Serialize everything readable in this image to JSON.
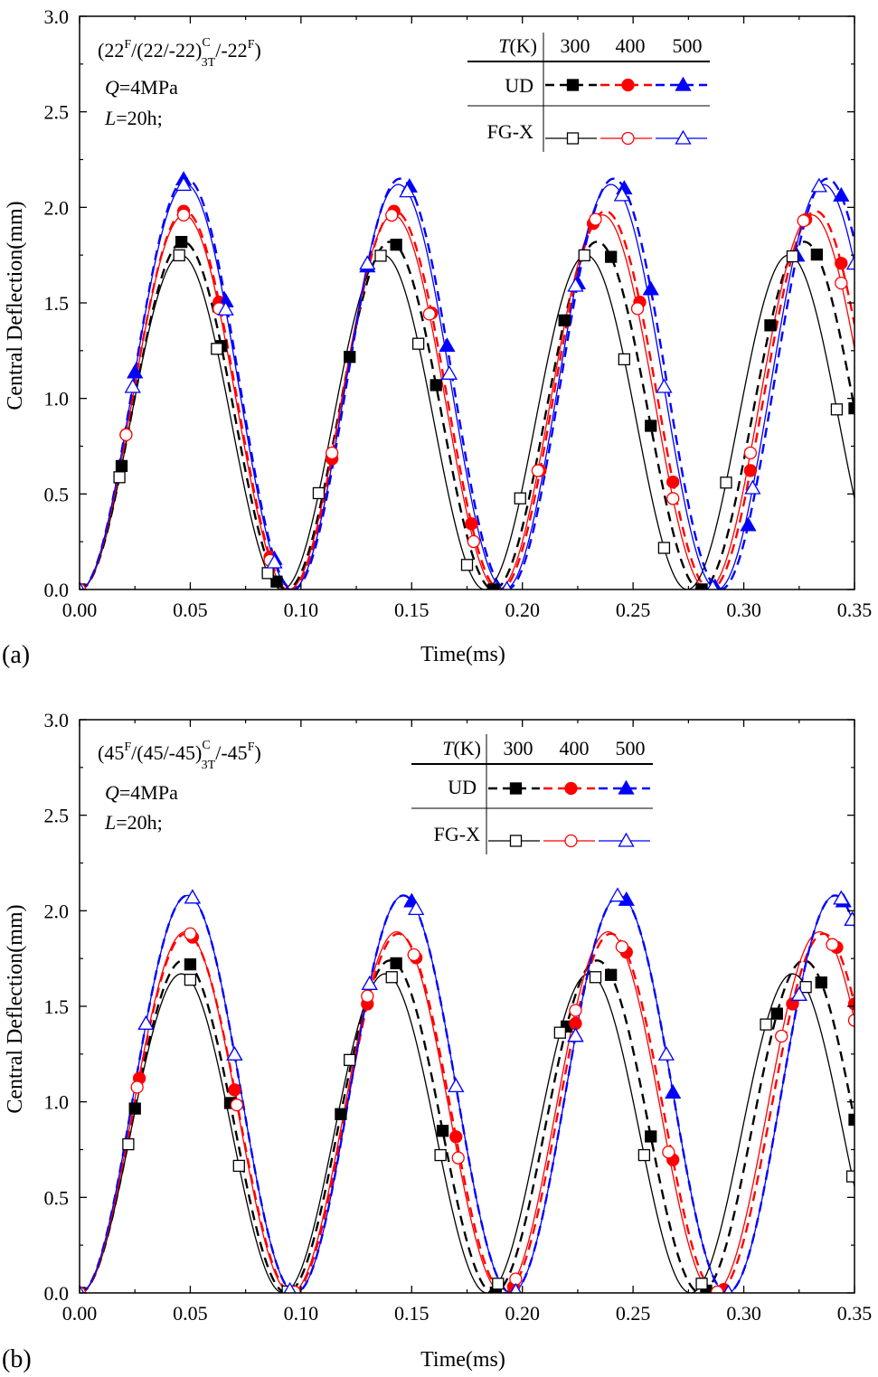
{
  "colors": {
    "t300": "#000000",
    "t400": "#ff0000",
    "t500": "#0000ff"
  },
  "chart_data": [
    {
      "type": "line",
      "panel_label": "(a)",
      "xlabel": "Time(ms)",
      "ylabel": "Central Deflection(mm)",
      "xlim": [
        0,
        0.35
      ],
      "ylim": [
        0,
        3.0
      ],
      "xticks": [
        "0.00",
        "0.05",
        "0.10",
        "0.15",
        "0.20",
        "0.25",
        "0.30",
        "0.35"
      ],
      "yticks": [
        "0.0",
        "0.5",
        "1.0",
        "1.5",
        "2.0",
        "2.5",
        "3.0"
      ],
      "annotation": {
        "layup_start": "(22",
        "layup_sup1": "F",
        "layup_mid": "/(22/-22)",
        "layup_sup2": "C",
        "layup_sub2": "3T",
        "layup_end": "/-22",
        "layup_sup3": "F",
        "layup_close": ")",
        "load_var": "Q",
        "load_val": "=4MPa",
        "length_var": "L",
        "length_val": "=20h;"
      },
      "legend": {
        "header_var": "T",
        "header_unit": "(K)",
        "temps": [
          "300",
          "400",
          "500"
        ],
        "row_ud": "UD",
        "row_fg": "FG-X"
      },
      "series": [
        {
          "name": "UD 300K",
          "temperature": 300,
          "material": "UD",
          "style": "dashed",
          "marker": "filled-square",
          "color": "#000000",
          "amplitude": 1.82,
          "period": 0.0935,
          "marker_x": [
            0.019,
            0.046,
            0.064,
            0.089,
            0.122,
            0.143,
            0.161,
            0.187,
            0.219,
            0.24,
            0.258,
            0.281,
            0.312,
            0.333,
            0.35
          ]
        },
        {
          "name": "UD 400K",
          "temperature": 400,
          "material": "UD",
          "style": "dashed",
          "marker": "filled-circle",
          "color": "#ff0000",
          "amplitude": 1.98,
          "period": 0.095,
          "marker_x": [
            0.021,
            0.047,
            0.063,
            0.086,
            0.114,
            0.142,
            0.159,
            0.177,
            0.208,
            0.232,
            0.253,
            0.268,
            0.303,
            0.328,
            0.344
          ]
        },
        {
          "name": "UD 500K",
          "temperature": 500,
          "material": "UD",
          "style": "dashed",
          "marker": "filled-triangle",
          "color": "#0000ff",
          "amplitude": 2.15,
          "period": 0.0965,
          "marker_x": [
            0.025,
            0.047,
            0.066,
            0.088,
            0.13,
            0.149,
            0.166,
            0.193,
            0.225,
            0.246,
            0.258,
            0.287,
            0.302,
            0.324,
            0.344
          ]
        },
        {
          "name": "FG-X 300K",
          "temperature": 300,
          "material": "FG-X",
          "style": "solid",
          "marker": "open-square",
          "color": "#000000",
          "amplitude": 1.75,
          "period": 0.0915,
          "marker_x": [
            0.018,
            0.045,
            0.062,
            0.085,
            0.108,
            0.136,
            0.153,
            0.175,
            0.199,
            0.228,
            0.246,
            0.264,
            0.292,
            0.322,
            0.342
          ]
        },
        {
          "name": "FG-X 400K",
          "temperature": 400,
          "material": "FG-X",
          "style": "solid",
          "marker": "open-circle",
          "color": "#ff0000",
          "amplitude": 1.96,
          "period": 0.0945,
          "marker_x": [
            0.021,
            0.047,
            0.063,
            0.086,
            0.114,
            0.141,
            0.158,
            0.178,
            0.207,
            0.233,
            0.252,
            0.268,
            0.303,
            0.327,
            0.344
          ]
        },
        {
          "name": "FG-X 500K",
          "temperature": 500,
          "material": "FG-X",
          "style": "solid",
          "marker": "open-triangle",
          "color": "#0000ff",
          "amplitude": 2.12,
          "period": 0.096,
          "marker_x": [
            0.024,
            0.047,
            0.066,
            0.088,
            0.13,
            0.148,
            0.167,
            0.193,
            0.224,
            0.245,
            0.264,
            0.286,
            0.304,
            0.334,
            0.35
          ]
        }
      ]
    },
    {
      "type": "line",
      "panel_label": "(b)",
      "xlabel": "Time(ms)",
      "ylabel": "Central Deflection(mm)",
      "xlim": [
        0,
        0.35
      ],
      "ylim": [
        0,
        3.0
      ],
      "xticks": [
        "0.00",
        "0.05",
        "0.10",
        "0.15",
        "0.20",
        "0.25",
        "0.30",
        "0.35"
      ],
      "yticks": [
        "0.0",
        "0.5",
        "1.0",
        "1.5",
        "2.0",
        "2.5",
        "3.0"
      ],
      "annotation": {
        "layup_start": "(45",
        "layup_sup1": "F",
        "layup_mid": "/(45/-45)",
        "layup_sup2": "C",
        "layup_sub2": "3T",
        "layup_end": "/-45",
        "layup_sup3": "F",
        "layup_close": ")",
        "load_var": "Q",
        "load_val": "=4MPa",
        "length_var": "L",
        "length_val": "=20h;"
      },
      "legend": {
        "header_var": "T",
        "header_unit": "(K)",
        "temps": [
          "300",
          "400",
          "500"
        ],
        "row_ud": "UD",
        "row_fg": "FG-X"
      },
      "series": [
        {
          "name": "UD 300K",
          "temperature": 300,
          "material": "UD",
          "style": "dashed",
          "marker": "filled-square",
          "color": "#000000",
          "amplitude": 1.74,
          "period": 0.0935,
          "marker_x": [
            0.025,
            0.05,
            0.068,
            0.094,
            0.118,
            0.143,
            0.164,
            0.188,
            0.22,
            0.24,
            0.258,
            0.283,
            0.315,
            0.335,
            0.35
          ]
        },
        {
          "name": "UD 400K",
          "temperature": 400,
          "material": "UD",
          "style": "dashed",
          "marker": "filled-circle",
          "color": "#ff0000",
          "amplitude": 1.88,
          "period": 0.096,
          "marker_x": [
            0.027,
            0.051,
            0.07,
            0.096,
            0.13,
            0.152,
            0.17,
            0.196,
            0.224,
            0.247,
            0.268,
            0.291,
            0.322,
            0.342,
            0.35
          ]
        },
        {
          "name": "UD 500K",
          "temperature": 500,
          "material": "UD",
          "style": "dashed",
          "marker": "filled-triangle",
          "color": "#0000ff",
          "amplitude": 2.08,
          "period": 0.0975,
          "marker_x": [
            0.03,
            0.051,
            0.07,
            0.097,
            0.131,
            0.15,
            0.17,
            0.197,
            0.224,
            0.247,
            0.268,
            0.293,
            0.325,
            0.345,
            0.349
          ]
        },
        {
          "name": "FG-X 300K",
          "temperature": 300,
          "material": "FG-X",
          "style": "solid",
          "marker": "open-square",
          "color": "#000000",
          "amplitude": 1.67,
          "period": 0.092,
          "marker_x": [
            0.022,
            0.05,
            0.072,
            0.094,
            0.122,
            0.141,
            0.163,
            0.189,
            0.217,
            0.233,
            0.255,
            0.281,
            0.31,
            0.328,
            0.349
          ]
        },
        {
          "name": "FG-X 400K",
          "temperature": 400,
          "material": "FG-X",
          "style": "solid",
          "marker": "open-circle",
          "color": "#ff0000",
          "amplitude": 1.89,
          "period": 0.0955,
          "marker_x": [
            0.026,
            0.05,
            0.071,
            0.097,
            0.13,
            0.151,
            0.171,
            0.197,
            0.224,
            0.245,
            0.266,
            0.288,
            0.317,
            0.34,
            0.35
          ]
        },
        {
          "name": "FG-X 500K",
          "temperature": 500,
          "material": "FG-X",
          "style": "solid",
          "marker": "open-triangle",
          "color": "#0000ff",
          "amplitude": 2.08,
          "period": 0.0975,
          "marker_x": [
            0.03,
            0.051,
            0.07,
            0.095,
            0.131,
            0.152,
            0.17,
            0.197,
            0.224,
            0.243,
            0.265,
            0.293,
            0.325,
            0.344,
            0.349
          ]
        }
      ]
    }
  ]
}
